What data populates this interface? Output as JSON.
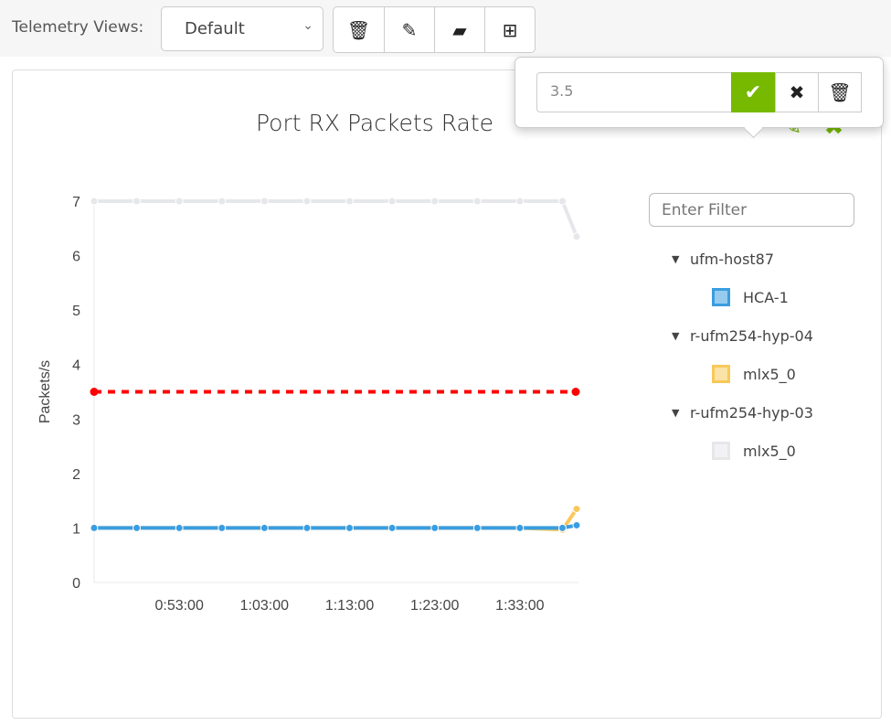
{
  "toolbar": {
    "label": "Telemetry Views:",
    "selected_view": "Default",
    "buttons": [
      {
        "icon": "trash-icon",
        "glyph": "🗑"
      },
      {
        "icon": "edit-icon",
        "glyph": "✎"
      },
      {
        "icon": "folder-plus-icon",
        "glyph": "▰"
      },
      {
        "icon": "plus-square-icon",
        "glyph": "⊞"
      }
    ]
  },
  "popover": {
    "value": "3.5",
    "confirm_glyph": "✔",
    "cancel_glyph": "✖",
    "delete_glyph": "🗑"
  },
  "panel": {
    "title": "Port RX Packets Rate",
    "icons": [
      "download-icon",
      "edit-icon",
      "close-icon"
    ]
  },
  "filter": {
    "placeholder": "Enter Filter"
  },
  "legend": [
    {
      "host": "ufm-host87",
      "items": [
        {
          "label": "HCA-1",
          "color": "#3a9de0"
        }
      ]
    },
    {
      "host": "r-ufm254-hyp-04",
      "items": [
        {
          "label": "mlx5_0",
          "color": "#f8c85a"
        }
      ]
    },
    {
      "host": "r-ufm254-hyp-03",
      "items": [
        {
          "label": "mlx5_0",
          "color": "#e6e7ea"
        }
      ]
    }
  ],
  "chart_data": {
    "type": "line",
    "ylabel": "Packets/s",
    "ylim": [
      0,
      7
    ],
    "yticks": [
      0,
      1,
      2,
      3,
      4,
      5,
      6,
      7
    ],
    "xticks": [
      "0:53:00",
      "1:03:00",
      "1:13:00",
      "1:23:00",
      "1:33:00"
    ],
    "x": [
      "0:43:00",
      "0:48:00",
      "0:53:00",
      "0:58:00",
      "1:03:00",
      "1:08:00",
      "1:13:00",
      "1:18:00",
      "1:23:00",
      "1:28:00",
      "1:33:00",
      "1:38:00",
      "1:39:40"
    ],
    "series": [
      {
        "host": "r-ufm254-hyp-03",
        "name": "mlx5_0",
        "color": "#e6e7ea",
        "values": [
          7,
          7,
          7,
          7,
          7,
          7,
          7,
          7,
          7,
          7,
          7,
          7,
          6.35
        ]
      },
      {
        "host": "r-ufm254-hyp-04",
        "name": "mlx5_0",
        "color": "#f8c85a",
        "values": [
          1,
          1,
          1,
          1,
          1,
          1,
          1,
          1,
          1,
          1,
          1,
          0.97,
          1.35
        ]
      },
      {
        "host": "ufm-host87",
        "name": "HCA-1",
        "color": "#3a9de0",
        "values": [
          1,
          1,
          1,
          1,
          1,
          1,
          1,
          1,
          1,
          1,
          1,
          1,
          1.05
        ]
      }
    ],
    "threshold": {
      "value": 3.5,
      "color": "#ff0000"
    },
    "grid": false
  }
}
